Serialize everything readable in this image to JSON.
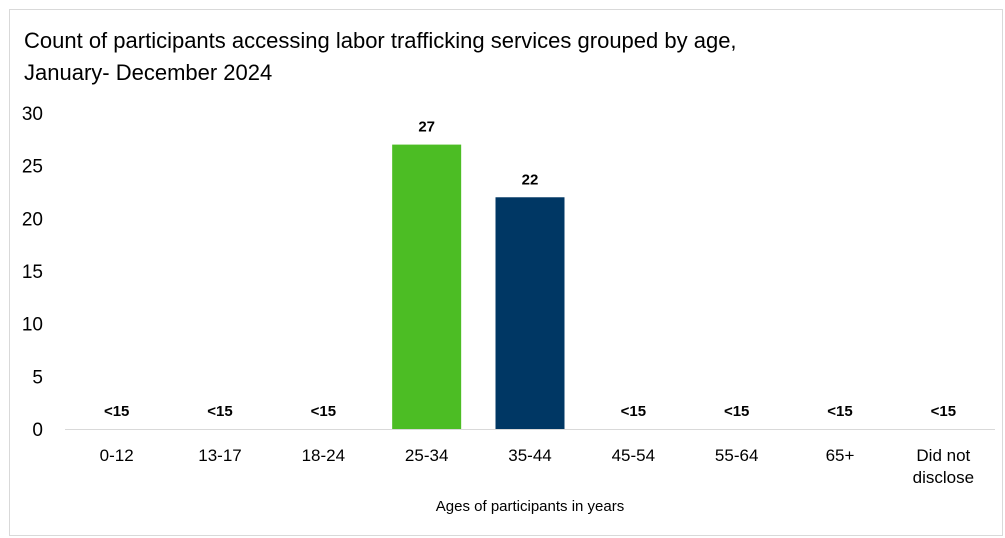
{
  "chart_data": {
    "type": "bar",
    "title_lines": [
      "Count of participants accessing labor trafficking services grouped by age,",
      "January- December 2024"
    ],
    "xlabel": "Ages of participants in years",
    "ylabel": "",
    "ylim": [
      0,
      30
    ],
    "yticks": [
      0,
      5,
      10,
      15,
      20,
      25,
      30
    ],
    "grid": false,
    "legend": "none",
    "categories": [
      [
        "0-12"
      ],
      [
        "13-17"
      ],
      [
        "18-24"
      ],
      [
        "25-34"
      ],
      [
        "35-44"
      ],
      [
        "45-54"
      ],
      [
        "55-64"
      ],
      [
        "65+"
      ],
      [
        "Did not",
        "disclose"
      ]
    ],
    "values": [
      null,
      null,
      null,
      27,
      22,
      null,
      null,
      null,
      null
    ],
    "data_labels": [
      "<15",
      "<15",
      "<15",
      "27",
      "22",
      "<15",
      "<15",
      "<15",
      "<15"
    ],
    "colors": [
      null,
      null,
      null,
      "#4cbd24",
      "#003764",
      null,
      null,
      null,
      null
    ],
    "axis_color": "#d9d9d9"
  }
}
